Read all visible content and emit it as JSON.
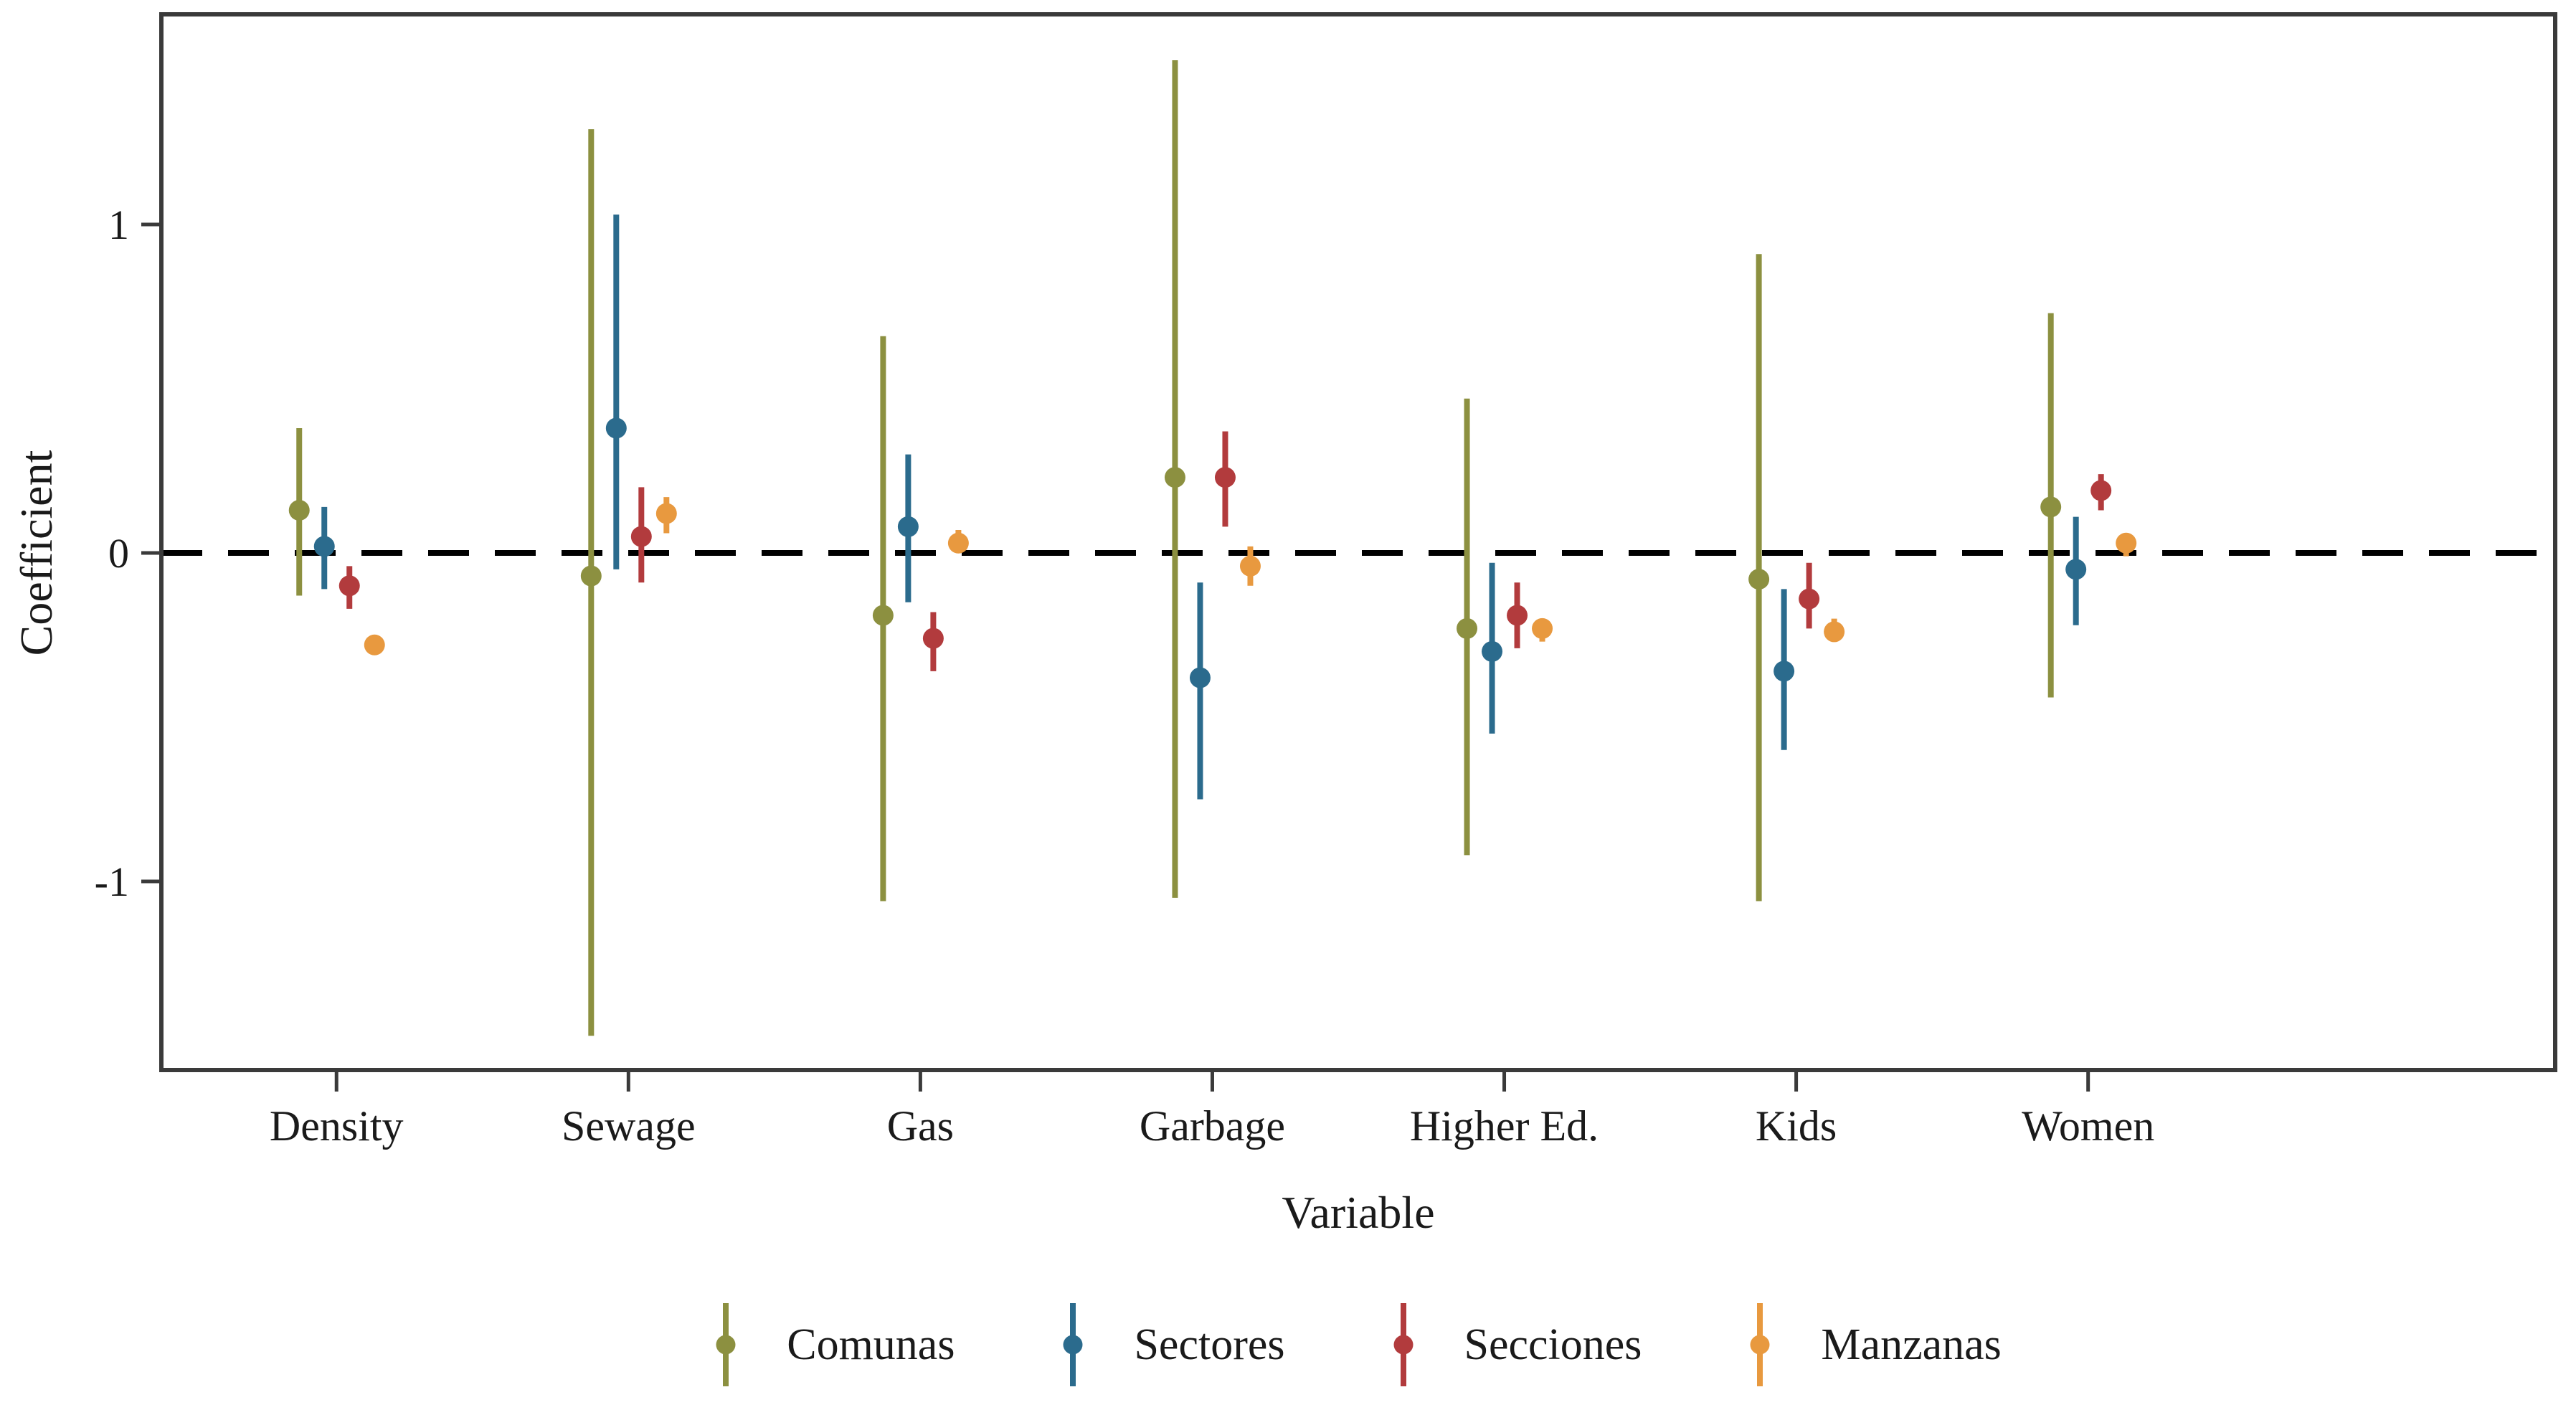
{
  "chart_data": {
    "type": "pointrange",
    "title": "",
    "xlabel": "Variable",
    "ylabel": "Coefficient",
    "categories": [
      "Density",
      "Sewage",
      "Gas",
      "Garbage",
      "Higher Ed.",
      "Kids",
      "Women"
    ],
    "ytick_labels": [
      "1",
      "0",
      "-1"
    ],
    "ytick_values": [
      1,
      0,
      -1
    ],
    "ylim": [
      -1.64,
      1.64
    ],
    "zero_reference_line": 0,
    "grid": false,
    "legend_position": "bottom",
    "series": [
      {
        "name": "Comunas",
        "color": "#8c9040",
        "points": [
          {
            "category": "Density",
            "value": 0.13,
            "lo": -0.13,
            "hi": 0.38
          },
          {
            "category": "Sewage",
            "value": -0.07,
            "lo": -1.47,
            "hi": 1.29
          },
          {
            "category": "Gas",
            "value": -0.19,
            "lo": -1.06,
            "hi": 0.66
          },
          {
            "category": "Garbage",
            "value": 0.23,
            "lo": -1.05,
            "hi": 1.5
          },
          {
            "category": "Higher Ed.",
            "value": -0.23,
            "lo": -0.92,
            "hi": 0.47
          },
          {
            "category": "Kids",
            "value": -0.08,
            "lo": -1.06,
            "hi": 0.91
          },
          {
            "category": "Women",
            "value": 0.14,
            "lo": -0.44,
            "hi": 0.73
          }
        ]
      },
      {
        "name": "Sectores",
        "color": "#2b6b8d",
        "points": [
          {
            "category": "Density",
            "value": 0.02,
            "lo": -0.11,
            "hi": 0.14
          },
          {
            "category": "Sewage",
            "value": 0.38,
            "lo": -0.05,
            "hi": 1.03
          },
          {
            "category": "Gas",
            "value": 0.08,
            "lo": -0.15,
            "hi": 0.3
          },
          {
            "category": "Garbage",
            "value": -0.38,
            "lo": -0.75,
            "hi": -0.09
          },
          {
            "category": "Higher Ed.",
            "value": -0.3,
            "lo": -0.55,
            "hi": -0.03
          },
          {
            "category": "Kids",
            "value": -0.36,
            "lo": -0.6,
            "hi": -0.11
          },
          {
            "category": "Women",
            "value": -0.05,
            "lo": -0.22,
            "hi": 0.11
          }
        ]
      },
      {
        "name": "Secciones",
        "color": "#b23b3d",
        "points": [
          {
            "category": "Density",
            "value": -0.1,
            "lo": -0.17,
            "hi": -0.04
          },
          {
            "category": "Sewage",
            "value": 0.05,
            "lo": -0.09,
            "hi": 0.2
          },
          {
            "category": "Gas",
            "value": -0.26,
            "lo": -0.36,
            "hi": -0.18
          },
          {
            "category": "Garbage",
            "value": 0.23,
            "lo": 0.08,
            "hi": 0.37
          },
          {
            "category": "Higher Ed.",
            "value": -0.19,
            "lo": -0.29,
            "hi": -0.09
          },
          {
            "category": "Kids",
            "value": -0.14,
            "lo": -0.23,
            "hi": -0.03
          },
          {
            "category": "Women",
            "value": 0.19,
            "lo": 0.13,
            "hi": 0.24
          }
        ]
      },
      {
        "name": "Manzanas",
        "color": "#e8993f",
        "points": [
          {
            "category": "Density",
            "value": -0.28,
            "lo": -0.31,
            "hi": -0.25
          },
          {
            "category": "Sewage",
            "value": 0.12,
            "lo": 0.06,
            "hi": 0.17
          },
          {
            "category": "Gas",
            "value": 0.03,
            "lo": 0.0,
            "hi": 0.07
          },
          {
            "category": "Garbage",
            "value": -0.04,
            "lo": -0.1,
            "hi": 0.02
          },
          {
            "category": "Higher Ed.",
            "value": -0.23,
            "lo": -0.27,
            "hi": -0.2
          },
          {
            "category": "Kids",
            "value": -0.24,
            "lo": -0.27,
            "hi": -0.2
          },
          {
            "category": "Women",
            "value": 0.03,
            "lo": -0.01,
            "hi": 0.06
          }
        ]
      }
    ],
    "colors": {
      "zero_line": "#000000",
      "axis": "#3a3a3a",
      "text": "#1a1a1a",
      "background": "#ffffff"
    }
  }
}
